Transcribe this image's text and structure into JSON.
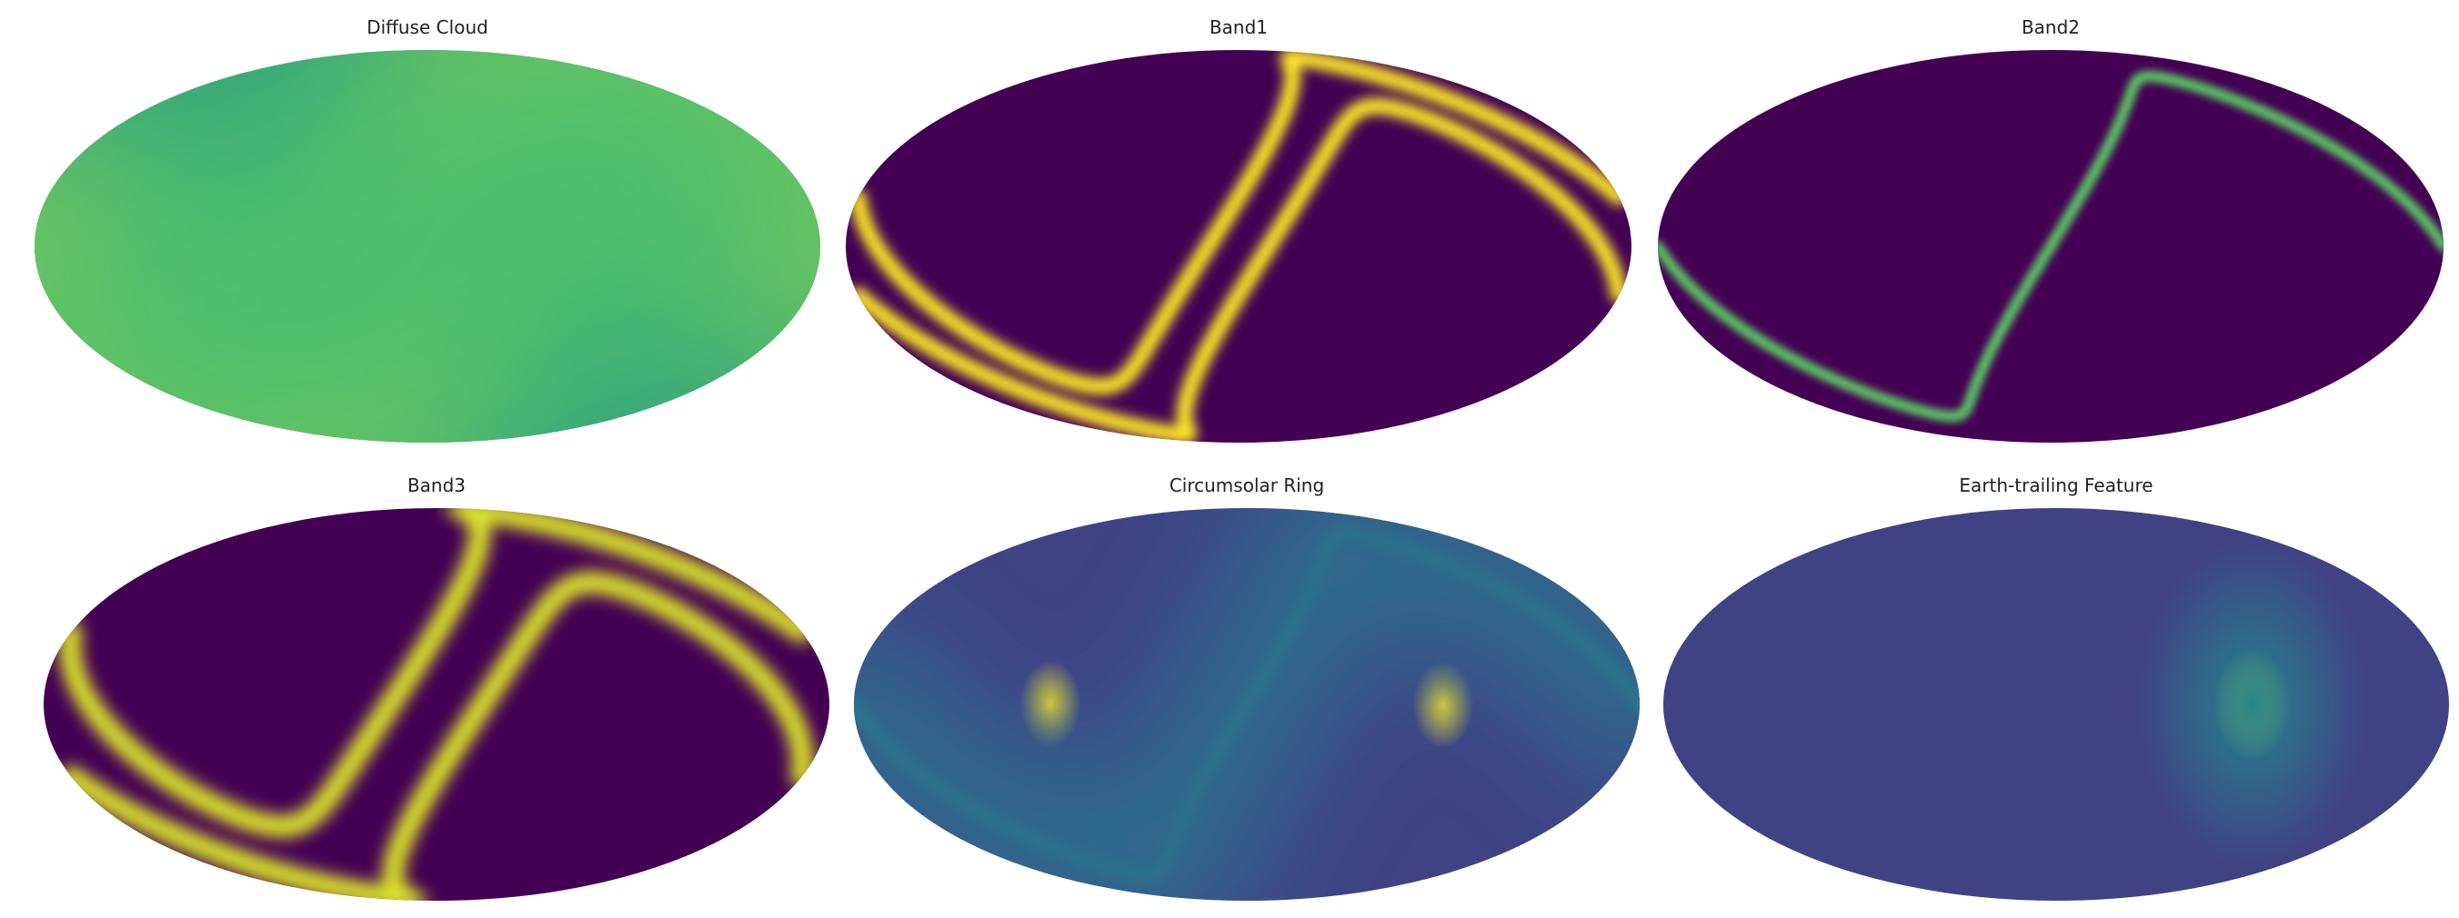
{
  "chart_data": [
    {
      "type": "heatmap",
      "projection": "mollweide",
      "title": "Diffuse Cloud",
      "colormap": "viridis",
      "background_level": 0.45,
      "features": [
        {
          "name": "zodiacal-band",
          "kind": "band",
          "amplitude": 0.55,
          "width": 0.55
        },
        {
          "name": "wide-halo",
          "kind": "band",
          "amplitude": 0.25,
          "width": 1.3
        }
      ]
    },
    {
      "type": "heatmap",
      "projection": "mollweide",
      "title": "Band1",
      "colormap": "viridis",
      "background_level": 0.0,
      "features": [
        {
          "name": "band-upper",
          "kind": "band",
          "amplitude": 1.0,
          "width": 0.045,
          "offset": 0.16
        },
        {
          "name": "band-lower",
          "kind": "band",
          "amplitude": 1.0,
          "width": 0.045,
          "offset": -0.16
        }
      ]
    },
    {
      "type": "heatmap",
      "projection": "mollweide",
      "title": "Band2",
      "colormap": "viridis",
      "background_level": 0.0,
      "features": [
        {
          "name": "band-center",
          "kind": "band",
          "amplitude": 0.75,
          "width": 0.03,
          "offset": 0.0
        }
      ]
    },
    {
      "type": "heatmap",
      "projection": "mollweide",
      "title": "Band3",
      "colormap": "viridis",
      "background_level": 0.0,
      "features": [
        {
          "name": "band-upper",
          "kind": "band",
          "amplitude": 0.95,
          "width": 0.06,
          "offset": 0.24
        },
        {
          "name": "band-lower",
          "kind": "band",
          "amplitude": 0.95,
          "width": 0.06,
          "offset": -0.24
        }
      ]
    },
    {
      "type": "heatmap",
      "projection": "mollweide",
      "title": "Circumsolar Ring",
      "colormap": "viridis",
      "background_level": 0.2,
      "features": [
        {
          "name": "ring-leading",
          "kind": "blob",
          "amplitude": 0.85,
          "lon": 90,
          "width": 0.16
        },
        {
          "name": "ring-trailing",
          "kind": "blob",
          "amplitude": 0.85,
          "lon": -90,
          "width": 0.16
        },
        {
          "name": "ring-band",
          "kind": "band",
          "amplitude": 0.35,
          "width": 0.04
        },
        {
          "name": "ring-glow",
          "kind": "band",
          "amplitude": 0.15,
          "width": 0.45
        }
      ]
    },
    {
      "type": "heatmap",
      "projection": "mollweide",
      "title": "Earth-trailing Feature",
      "colormap": "viridis",
      "background_level": 0.2,
      "features": [
        {
          "name": "trailing-blob",
          "kind": "blob",
          "amplitude": 0.85,
          "lon": 90,
          "width": 0.2
        },
        {
          "name": "trailing-glow",
          "kind": "blob",
          "amplitude": 0.25,
          "lon": 90,
          "width": 0.6
        }
      ]
    }
  ]
}
